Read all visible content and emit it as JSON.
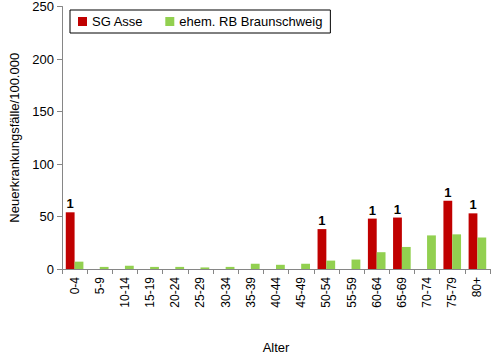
{
  "chart_data": {
    "type": "bar",
    "x_label": "Alter",
    "y_label": "Neuerkrankungsfälle/100.000",
    "categories": [
      "0-4",
      "5-9",
      "10-14",
      "15-19",
      "20-24",
      "25-29",
      "30-34",
      "35-39",
      "40-44",
      "45-49",
      "50-54",
      "55-59",
      "60-64",
      "65-69",
      "70-74",
      "75-79",
      "80+"
    ],
    "series": [
      {
        "name": "SG Asse",
        "color": "#c00000",
        "values": [
          54,
          null,
          null,
          null,
          null,
          null,
          null,
          null,
          null,
          null,
          38,
          null,
          48,
          49,
          null,
          65,
          53
        ],
        "counts": [
          1,
          null,
          null,
          null,
          null,
          null,
          null,
          null,
          null,
          null,
          1,
          null,
          1,
          1,
          null,
          1,
          1
        ]
      },
      {
        "name": "ehem. RB Braunschweig",
        "color": "#92d050",
        "values": [
          7,
          2,
          3,
          2,
          2,
          1.5,
          2,
          5,
          4,
          5,
          8,
          9,
          16,
          21,
          32,
          33,
          30
        ]
      }
    ],
    "ylim": [
      0,
      250
    ],
    "yticks": [
      0,
      50,
      100,
      150,
      200,
      250
    ],
    "grid": false,
    "legend": "upper left"
  }
}
